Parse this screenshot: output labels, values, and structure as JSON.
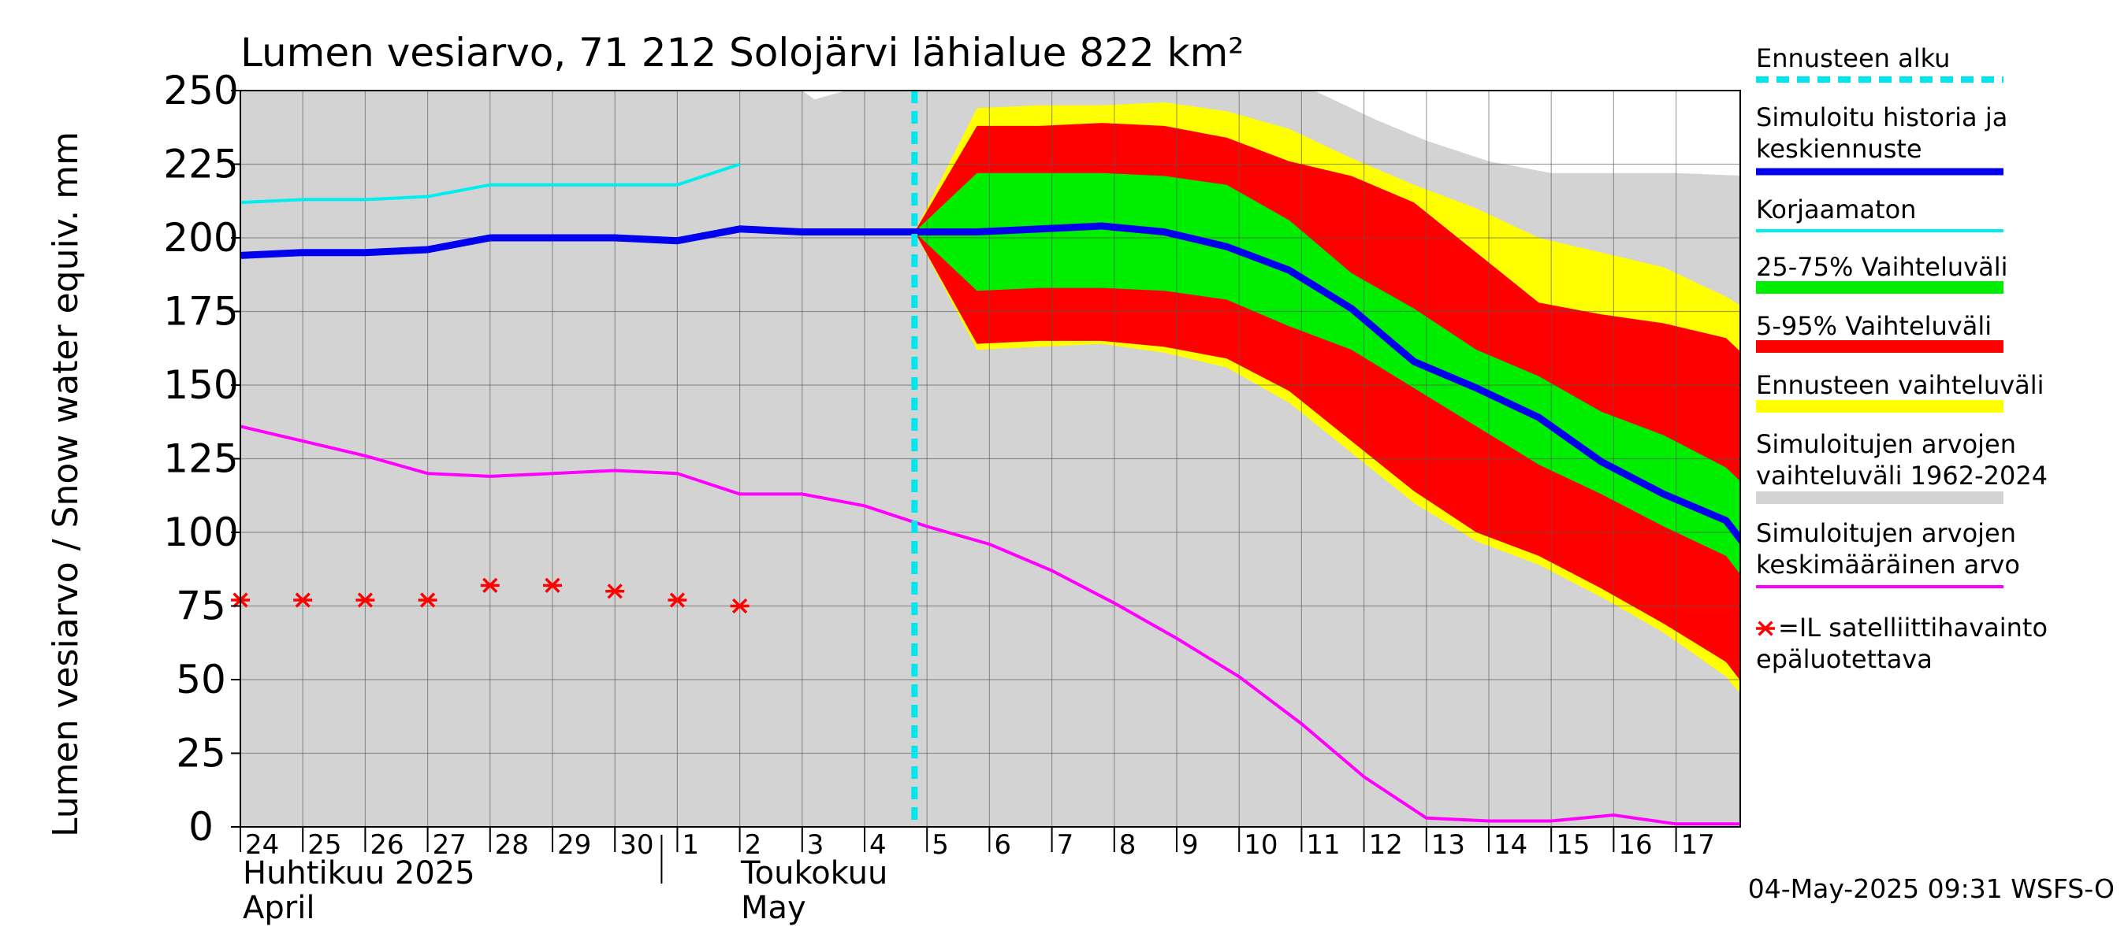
{
  "chart_data": {
    "type": "area",
    "title": "Lumen vesiarvo, 71 212 Solojärvi lähialue 822 km²",
    "ylabel": "Lumen vesiarvo / Snow water equiv.    mm",
    "ylim": [
      0,
      250
    ],
    "yticks": [
      0,
      25,
      50,
      75,
      100,
      125,
      150,
      175,
      200,
      225,
      250
    ],
    "x_day_labels": [
      "24",
      "25",
      "26",
      "27",
      "28",
      "29",
      "30",
      "1",
      "2",
      "3",
      "4",
      "5",
      "6",
      "7",
      "8",
      "9",
      "10",
      "11",
      "12",
      "13",
      "14",
      "15",
      "16",
      "17"
    ],
    "month_labels": {
      "april_fi": "Huhtikuu  2025",
      "april_en": "April",
      "may_fi": "Toukokuu",
      "may_en": "May"
    },
    "forecast_start_day": 10.8,
    "grid": true,
    "series": {
      "historical_range": {
        "name": "Simuloitujen arvojen vaihteluväli 1962-2024",
        "color": "#d3d3d3",
        "upper": [
          [
            0,
            250
          ],
          [
            9,
            250
          ],
          [
            9.2,
            247
          ],
          [
            9.7,
            250
          ],
          [
            17.2,
            250
          ],
          [
            18.2,
            240
          ],
          [
            19,
            233
          ],
          [
            20,
            226
          ],
          [
            21,
            222
          ],
          [
            23,
            222
          ],
          [
            24.2,
            221
          ]
        ],
        "lower": [
          [
            0,
            0
          ],
          [
            24.2,
            0
          ]
        ]
      },
      "forecast_range": {
        "name": "Ennusteen vaihteluväli",
        "color": "#ffff00",
        "upper": [
          [
            10.8,
            202
          ],
          [
            11.8,
            244
          ],
          [
            12.8,
            245
          ],
          [
            13.8,
            245
          ],
          [
            14.8,
            246
          ],
          [
            15.8,
            243
          ],
          [
            16.8,
            237
          ],
          [
            17.8,
            227
          ],
          [
            18.8,
            218
          ],
          [
            19.8,
            210
          ],
          [
            20.8,
            200
          ],
          [
            21.8,
            195
          ],
          [
            22.8,
            190
          ],
          [
            23.8,
            180
          ],
          [
            24.2,
            175
          ]
        ],
        "lower": [
          [
            10.8,
            202
          ],
          [
            11.8,
            162
          ],
          [
            12.8,
            163
          ],
          [
            13.8,
            164
          ],
          [
            14.8,
            161
          ],
          [
            15.8,
            156
          ],
          [
            16.8,
            144
          ],
          [
            17.8,
            127
          ],
          [
            18.8,
            110
          ],
          [
            19.8,
            97
          ],
          [
            20.8,
            89
          ],
          [
            21.8,
            78
          ],
          [
            22.8,
            66
          ],
          [
            23.8,
            51
          ],
          [
            24.2,
            41
          ]
        ]
      },
      "range_5_95": {
        "name": "5-95% Vaihteluväli",
        "color": "#ff0000",
        "upper": [
          [
            10.8,
            202
          ],
          [
            11.8,
            238
          ],
          [
            12.8,
            238
          ],
          [
            13.8,
            239
          ],
          [
            14.8,
            238
          ],
          [
            15.8,
            234
          ],
          [
            16.8,
            226
          ],
          [
            17.8,
            221
          ],
          [
            18.8,
            212
          ],
          [
            19.8,
            195
          ],
          [
            20.8,
            178
          ],
          [
            21.8,
            174
          ],
          [
            22.8,
            171
          ],
          [
            23.8,
            166
          ],
          [
            24.2,
            158
          ]
        ],
        "lower": [
          [
            10.8,
            202
          ],
          [
            11.8,
            164
          ],
          [
            12.8,
            165
          ],
          [
            13.8,
            165
          ],
          [
            14.8,
            163
          ],
          [
            15.8,
            159
          ],
          [
            16.8,
            148
          ],
          [
            17.8,
            131
          ],
          [
            18.8,
            114
          ],
          [
            19.8,
            100
          ],
          [
            20.8,
            92
          ],
          [
            21.8,
            81
          ],
          [
            22.8,
            69
          ],
          [
            23.8,
            56
          ],
          [
            24.2,
            45
          ]
        ]
      },
      "range_25_75": {
        "name": "25-75% Vaihteluväli",
        "color": "#00ee00",
        "upper": [
          [
            10.8,
            202
          ],
          [
            11.8,
            222
          ],
          [
            12.8,
            222
          ],
          [
            13.8,
            222
          ],
          [
            14.8,
            221
          ],
          [
            15.8,
            218
          ],
          [
            16.8,
            206
          ],
          [
            17.8,
            188
          ],
          [
            18.8,
            176
          ],
          [
            19.8,
            162
          ],
          [
            20.8,
            153
          ],
          [
            21.8,
            141
          ],
          [
            22.8,
            133
          ],
          [
            23.8,
            122
          ],
          [
            24.2,
            114
          ]
        ],
        "lower": [
          [
            10.8,
            202
          ],
          [
            11.8,
            182
          ],
          [
            12.8,
            183
          ],
          [
            13.8,
            183
          ],
          [
            14.8,
            182
          ],
          [
            15.8,
            179
          ],
          [
            16.8,
            170
          ],
          [
            17.8,
            162
          ],
          [
            18.8,
            149
          ],
          [
            19.8,
            136
          ],
          [
            20.8,
            123
          ],
          [
            21.8,
            113
          ],
          [
            22.8,
            102
          ],
          [
            23.8,
            92
          ],
          [
            24.2,
            81
          ]
        ]
      },
      "median": {
        "name": "Simuloitu historia ja keskiennuste",
        "color": "#0000ee",
        "points": [
          [
            0,
            194
          ],
          [
            1,
            195
          ],
          [
            2,
            195
          ],
          [
            3,
            196
          ],
          [
            4,
            200
          ],
          [
            5,
            200
          ],
          [
            6,
            200
          ],
          [
            7,
            199
          ],
          [
            8,
            203
          ],
          [
            9,
            202
          ],
          [
            10,
            202
          ],
          [
            10.8,
            202
          ],
          [
            11.8,
            202
          ],
          [
            12.8,
            203
          ],
          [
            13.8,
            204
          ],
          [
            14.8,
            202
          ],
          [
            15.8,
            197
          ],
          [
            16.8,
            189
          ],
          [
            17.8,
            176
          ],
          [
            18.8,
            158
          ],
          [
            19.8,
            149
          ],
          [
            20.8,
            139
          ],
          [
            21.8,
            124
          ],
          [
            22.8,
            113
          ],
          [
            23.8,
            104
          ],
          [
            24.2,
            93
          ]
        ]
      },
      "uncorrected": {
        "name": "Korjaamaton",
        "color": "#00eeee",
        "points": [
          [
            0,
            212
          ],
          [
            1,
            213
          ],
          [
            2,
            213
          ],
          [
            3,
            214
          ],
          [
            4,
            218
          ],
          [
            5,
            218
          ],
          [
            6,
            218
          ],
          [
            7,
            218
          ],
          [
            8,
            225
          ]
        ]
      },
      "mean": {
        "name": "Simuloitujen arvojen keskimääräinen arvo",
        "color": "#ff00ff",
        "points": [
          [
            0,
            136
          ],
          [
            1,
            131
          ],
          [
            2,
            126
          ],
          [
            3,
            120
          ],
          [
            4,
            119
          ],
          [
            5,
            120
          ],
          [
            6,
            121
          ],
          [
            7,
            120
          ],
          [
            8,
            113
          ],
          [
            9,
            113
          ],
          [
            10,
            109
          ],
          [
            11,
            102
          ],
          [
            12,
            96
          ],
          [
            13,
            87
          ],
          [
            14,
            76
          ],
          [
            15,
            64
          ],
          [
            16,
            51
          ],
          [
            17,
            35
          ],
          [
            18,
            17
          ],
          [
            19,
            3
          ],
          [
            20,
            2
          ],
          [
            21,
            2
          ],
          [
            22,
            4
          ],
          [
            23,
            1
          ],
          [
            24.2,
            1
          ]
        ]
      },
      "satellite": {
        "name": "=IL satelliittihavainto epäluotettava",
        "color": "#ff0000",
        "points": [
          [
            0,
            77
          ],
          [
            1,
            77
          ],
          [
            2,
            77
          ],
          [
            3,
            77
          ],
          [
            4,
            82
          ],
          [
            5,
            82
          ],
          [
            6,
            80
          ],
          [
            7,
            77
          ],
          [
            8,
            75
          ]
        ]
      }
    }
  },
  "legend": [
    {
      "key": "forecast_start",
      "line1": "Ennusteen alku",
      "line2": "",
      "color": "#00e5ee",
      "style": "dashed"
    },
    {
      "key": "median",
      "line1": "Simuloitu historia ja",
      "line2": "keskiennuste",
      "color": "#0000ee",
      "style": "thick"
    },
    {
      "key": "uncorrected",
      "line1": "Korjaamaton",
      "line2": "",
      "color": "#00eeee",
      "style": "line"
    },
    {
      "key": "range_25_75",
      "line1": "25-75% Vaihteluväli",
      "line2": "",
      "color": "#00ee00",
      "style": "band"
    },
    {
      "key": "range_5_95",
      "line1": "5-95% Vaihteluväli",
      "line2": "",
      "color": "#ff0000",
      "style": "band"
    },
    {
      "key": "forecast_range",
      "line1": "Ennusteen vaihteluväli",
      "line2": "",
      "color": "#ffff00",
      "style": "band"
    },
    {
      "key": "historical_range",
      "line1": "Simuloitujen arvojen",
      "line2": "vaihteluväli 1962-2024",
      "color": "#d3d3d3",
      "style": "band"
    },
    {
      "key": "mean",
      "line1": "Simuloitujen arvojen",
      "line2": "keskimääräinen arvo",
      "color": "#ff00ff",
      "style": "line"
    },
    {
      "key": "satellite",
      "line1": "=IL satelliittihavainto",
      "line2": "epäluotettava",
      "color": "#ff0000",
      "style": "marker"
    }
  ],
  "footer": "04-May-2025 09:31 WSFS-O"
}
